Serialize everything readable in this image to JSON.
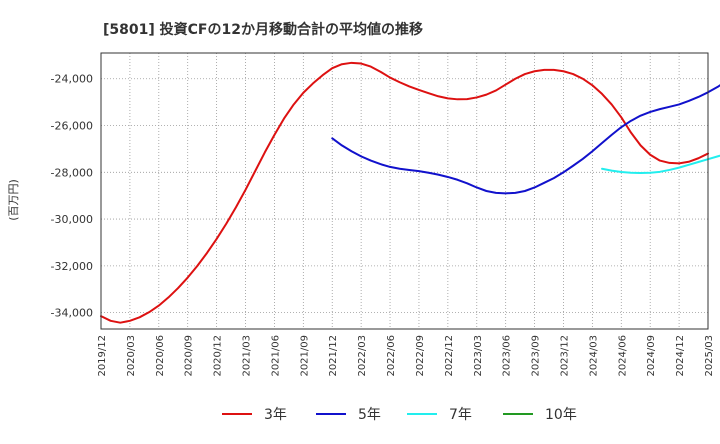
{
  "chart_data": {
    "type": "line",
    "title": "[5801]  投資CFの12か月移動合計の平均値の推移",
    "ylabel": "(百万円)",
    "xlabel": "",
    "ylim": [
      -34700,
      -22900
    ],
    "y_ticks": [
      -24000,
      -26000,
      -28000,
      -30000,
      -32000,
      -34000
    ],
    "y_tick_labels": [
      "-24,000",
      "-26,000",
      "-28,000",
      "-30,000",
      "-32,000",
      "-34,000"
    ],
    "x_tick_labels": [
      "2019/12",
      "2020/03",
      "2020/06",
      "2020/09",
      "2020/12",
      "2021/03",
      "2021/06",
      "2021/09",
      "2021/12",
      "2022/03",
      "2022/06",
      "2022/09",
      "2022/12",
      "2023/03",
      "2023/06",
      "2023/09",
      "2023/12",
      "2024/03",
      "2024/06",
      "2024/09",
      "2024/12",
      "2025/03"
    ],
    "grid": true,
    "legend_position": "bottom",
    "series": [
      {
        "name": "3年",
        "color": "#dd1111",
        "points": [
          [
            0,
            -34150
          ],
          [
            1,
            -34350
          ],
          [
            2,
            -34430
          ],
          [
            3,
            -34350
          ],
          [
            4,
            -34200
          ],
          [
            5,
            -33980
          ],
          [
            6,
            -33700
          ],
          [
            7,
            -33350
          ],
          [
            8,
            -32950
          ],
          [
            9,
            -32500
          ],
          [
            10,
            -32000
          ],
          [
            11,
            -31450
          ],
          [
            12,
            -30850
          ],
          [
            13,
            -30200
          ],
          [
            14,
            -29500
          ],
          [
            15,
            -28750
          ],
          [
            16,
            -27950
          ],
          [
            17,
            -27150
          ],
          [
            18,
            -26400
          ],
          [
            19,
            -25700
          ],
          [
            20,
            -25100
          ],
          [
            21,
            -24600
          ],
          [
            22,
            -24200
          ],
          [
            23,
            -23850
          ],
          [
            24,
            -23550
          ],
          [
            25,
            -23380
          ],
          [
            26,
            -23320
          ],
          [
            27,
            -23350
          ],
          [
            28,
            -23480
          ],
          [
            29,
            -23700
          ],
          [
            30,
            -23950
          ],
          [
            31,
            -24150
          ],
          [
            32,
            -24330
          ],
          [
            33,
            -24480
          ],
          [
            34,
            -24620
          ],
          [
            35,
            -24750
          ],
          [
            36,
            -24840
          ],
          [
            37,
            -24880
          ],
          [
            38,
            -24870
          ],
          [
            39,
            -24800
          ],
          [
            40,
            -24680
          ],
          [
            41,
            -24500
          ],
          [
            42,
            -24250
          ],
          [
            43,
            -24000
          ],
          [
            44,
            -23800
          ],
          [
            45,
            -23680
          ],
          [
            46,
            -23620
          ],
          [
            47,
            -23620
          ],
          [
            48,
            -23680
          ],
          [
            49,
            -23800
          ],
          [
            50,
            -24000
          ],
          [
            51,
            -24280
          ],
          [
            52,
            -24650
          ],
          [
            53,
            -25100
          ],
          [
            54,
            -25650
          ],
          [
            55,
            -26300
          ],
          [
            56,
            -26850
          ],
          [
            57,
            -27250
          ],
          [
            58,
            -27500
          ],
          [
            59,
            -27600
          ],
          [
            60,
            -27620
          ],
          [
            61,
            -27550
          ],
          [
            62,
            -27400
          ],
          [
            63,
            -27200
          ]
        ]
      },
      {
        "name": "5年",
        "color": "#1111cc",
        "points": [
          [
            24,
            -26550
          ],
          [
            25,
            -26850
          ],
          [
            26,
            -27100
          ],
          [
            27,
            -27320
          ],
          [
            28,
            -27500
          ],
          [
            29,
            -27650
          ],
          [
            30,
            -27770
          ],
          [
            31,
            -27850
          ],
          [
            32,
            -27900
          ],
          [
            33,
            -27950
          ],
          [
            34,
            -28020
          ],
          [
            35,
            -28100
          ],
          [
            36,
            -28200
          ],
          [
            37,
            -28320
          ],
          [
            38,
            -28470
          ],
          [
            39,
            -28650
          ],
          [
            40,
            -28800
          ],
          [
            41,
            -28880
          ],
          [
            42,
            -28900
          ],
          [
            43,
            -28880
          ],
          [
            44,
            -28800
          ],
          [
            45,
            -28650
          ],
          [
            46,
            -28450
          ],
          [
            47,
            -28250
          ],
          [
            48,
            -28000
          ],
          [
            49,
            -27720
          ],
          [
            50,
            -27430
          ],
          [
            51,
            -27100
          ],
          [
            52,
            -26750
          ],
          [
            53,
            -26400
          ],
          [
            54,
            -26070
          ],
          [
            55,
            -25800
          ],
          [
            56,
            -25580
          ],
          [
            57,
            -25420
          ],
          [
            58,
            -25300
          ],
          [
            59,
            -25200
          ],
          [
            60,
            -25100
          ],
          [
            61,
            -24950
          ],
          [
            62,
            -24780
          ],
          [
            63,
            -24580
          ],
          [
            64,
            -24350
          ],
          [
            65,
            -24080
          ],
          [
            66,
            -23780
          ]
        ]
      },
      {
        "name": "7年",
        "color": "#22eeee",
        "points": [
          [
            52,
            -27850
          ],
          [
            53,
            -27930
          ],
          [
            54,
            -27990
          ],
          [
            55,
            -28020
          ],
          [
            56,
            -28030
          ],
          [
            57,
            -28020
          ],
          [
            58,
            -27980
          ],
          [
            59,
            -27900
          ],
          [
            60,
            -27800
          ],
          [
            61,
            -27680
          ],
          [
            62,
            -27560
          ],
          [
            63,
            -27440
          ],
          [
            64,
            -27320
          ],
          [
            65,
            -27200
          ],
          [
            66,
            -27080
          ],
          [
            67,
            -26960
          ],
          [
            68,
            -26850
          ]
        ]
      },
      {
        "name": "10年",
        "color": "#229922",
        "points": []
      }
    ]
  }
}
